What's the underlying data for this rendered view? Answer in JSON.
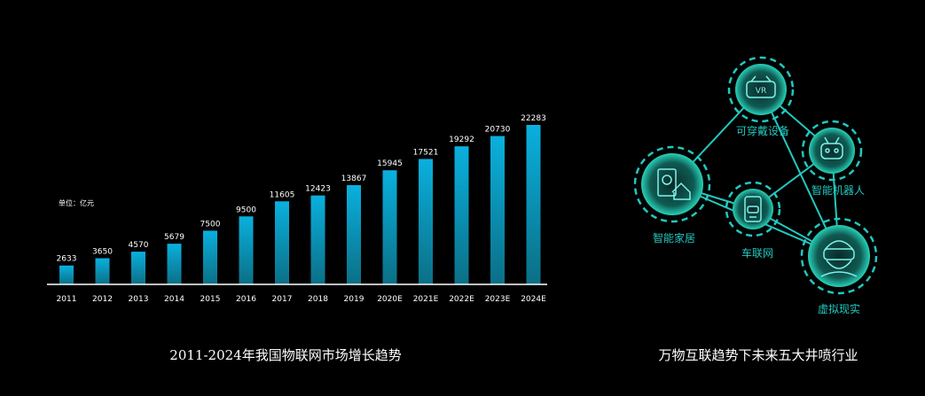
{
  "chart_data": {
    "type": "bar",
    "title": "2011-2024年我国物联网市场增长趋势",
    "unit": "单位：亿元",
    "categories": [
      "2011",
      "2012",
      "2013",
      "2014",
      "2015",
      "2016",
      "2017",
      "2018",
      "2019",
      "2020E",
      "2021E",
      "2022E",
      "2023E",
      "2024E"
    ],
    "values": [
      2633,
      3650,
      4570,
      5679,
      7500,
      9500,
      11605,
      12423,
      13867,
      15945,
      17521,
      19292,
      20730,
      22283
    ],
    "value_labels": [
      "2633",
      "3650",
      "4570",
      "5679",
      "7500",
      "9500",
      "11605",
      "12423",
      "13867",
      "15945",
      "17521",
      "19292",
      "20730",
      "22283"
    ],
    "xlabel": "",
    "ylabel": "",
    "grid": false,
    "bar_color_top": "#0ab0de",
    "bar_color_bottom": "#0b6f86"
  },
  "diagram": {
    "title": "万物互联趋势下未来五大井喷行业",
    "accent_color": "#22c8c0",
    "nodes": [
      {
        "id": "vr",
        "label": "可穿戴设备",
        "icon": "vr-headset-icon"
      },
      {
        "id": "robot",
        "label": "智能机器人",
        "icon": "robot-icon"
      },
      {
        "id": "home",
        "label": "智能家居",
        "icon": "smart-home-icon"
      },
      {
        "id": "car",
        "label": "车联网",
        "icon": "car-phone-icon"
      },
      {
        "id": "virtual",
        "label": "虚拟现实",
        "icon": "vr-person-icon"
      }
    ],
    "links": [
      [
        "home",
        "vr"
      ],
      [
        "vr",
        "robot"
      ],
      [
        "vr",
        "virtual"
      ],
      [
        "home",
        "car"
      ],
      [
        "car",
        "robot"
      ],
      [
        "car",
        "virtual"
      ],
      [
        "robot",
        "virtual"
      ],
      [
        "home",
        "virtual"
      ]
    ]
  }
}
